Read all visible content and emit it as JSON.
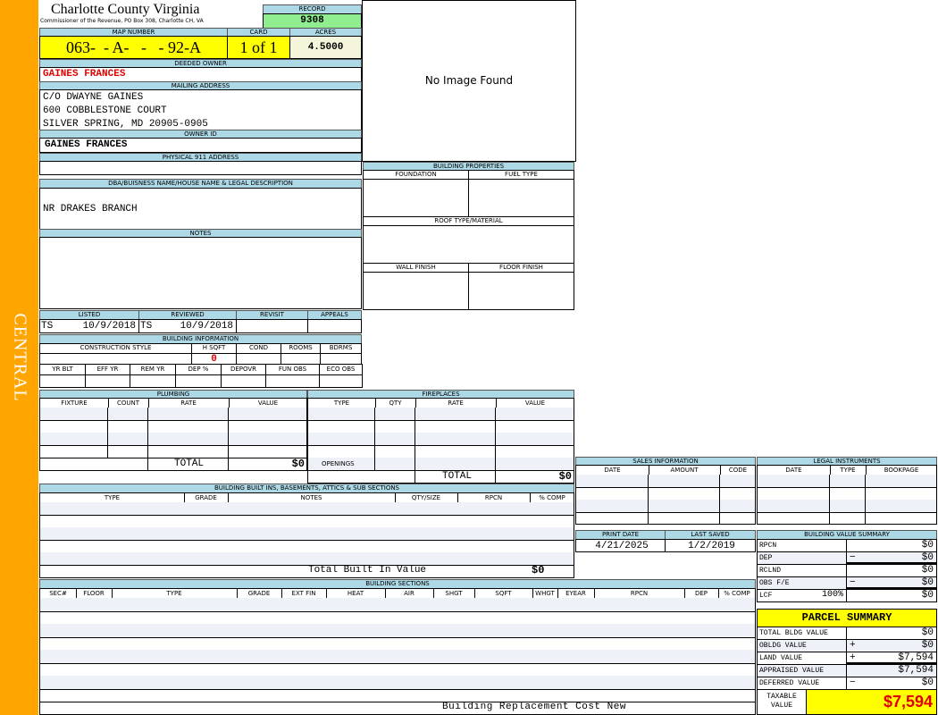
{
  "sidebar": {
    "label": "CENTRAL",
    "color": "#ffa500"
  },
  "header": {
    "title": "Charlotte County Virginia",
    "subtitle": "Commissioner of the Revenue, PO Box 308, Charlotte CH, VA",
    "record_label": "RECORD",
    "record": "9308"
  },
  "parcel": {
    "map_label": "MAP NUMBER",
    "map_number": "063-  - A-   -   - 92-A",
    "card_label": "CARD",
    "card": "1 of 1",
    "acres_label": "ACRES",
    "acres": "4.5000"
  },
  "owner": {
    "deeded_label": "DEEDED OWNER",
    "deeded": "GAINES FRANCES",
    "mailing_label": "MAILING ADDRESS",
    "mailing": [
      "C/O DWAYNE GAINES",
      "600 COBBLESTONE COURT",
      "SILVER SPRING, MD 20905-0905"
    ],
    "owner_id_label": "OWNER ID",
    "owner_id": "GAINES FRANCES",
    "physical_label": "PHYSICAL 911 ADDRESS",
    "physical": ""
  },
  "legal": {
    "label": "DBA/BUISNESS NAME/HOUSE NAME & LEGAL DESCRIPTION",
    "value": "NR DRAKES BRANCH",
    "notes_label": "NOTES"
  },
  "image": {
    "text": "No Image Found"
  },
  "building_properties": {
    "title": "BUILDING PROPERTIES",
    "foundation": "FOUNDATION",
    "fuel": "FUEL TYPE",
    "roof": "ROOF TYPE/MATERIAL",
    "wall": "WALL FINISH",
    "floor": "FLOOR FINISH"
  },
  "listing": {
    "listed_label": "LISTED",
    "reviewed_label": "REVIEWED",
    "revisit_label": "REVISIT",
    "appeals_label": "APPEALS",
    "listed_by": "TS",
    "listed_date": "10/9/2018",
    "reviewed_by": "TS",
    "reviewed_date": "10/9/2018"
  },
  "building_info": {
    "title": "BUILDING INFORMATION",
    "cols1": [
      "CONSTRUCTION STYLE",
      "H SQFT",
      "COND",
      "ROOMS",
      "BDRMS"
    ],
    "hsqft": "0",
    "cols2": [
      "YR BLT",
      "EFF YR",
      "REM YR",
      "DEP %",
      "DEPOVR",
      "FUN OBS",
      "ECO OBS"
    ]
  },
  "plumbing": {
    "title": "PLUMBING",
    "cols": [
      "FIXTURE",
      "COUNT",
      "RATE",
      "VALUE"
    ],
    "total_label": "TOTAL",
    "total": "$0"
  },
  "fireplaces": {
    "title": "FIREPLACES",
    "cols": [
      "TYPE",
      "QTY",
      "RATE",
      "VALUE"
    ],
    "openings_label": "OPENINGS",
    "total_label": "TOTAL",
    "total": "$0"
  },
  "sales": {
    "title": "SALES INFORMATION",
    "cols": [
      "DATE",
      "AMOUNT",
      "CODE"
    ]
  },
  "instruments": {
    "title": "LEGAL INSTRUMENTS",
    "cols": [
      "DATE",
      "TYPE",
      "BOOKPAGE"
    ]
  },
  "dates": {
    "print_label": "PRINT DATE",
    "print": "4/21/2025",
    "saved_label": "LAST SAVED",
    "saved": "1/2/2019"
  },
  "bvs": {
    "title": "BUILDING VALUE SUMMARY",
    "rows": [
      {
        "label": "RPCN",
        "sign": "",
        "value": "$0"
      },
      {
        "label": "DEP",
        "sign": "−",
        "value": "$0"
      },
      {
        "label": "RCLND",
        "sign": "",
        "value": "$0"
      },
      {
        "label": "OBS F/E",
        "sign": "−",
        "value": "$0"
      },
      {
        "label": "LCF",
        "pct": "100%",
        "sign": "",
        "value": "$0"
      }
    ]
  },
  "parcel_summary": {
    "title": "PARCEL SUMMARY",
    "rows": [
      {
        "label": "TOTAL BLDG VALUE",
        "sign": "",
        "value": "$0"
      },
      {
        "label": "OBLDG VALUE",
        "sign": "+",
        "value": "$0"
      },
      {
        "label": "LAND VALUE",
        "sign": "+",
        "value": "$7,594"
      },
      {
        "label": "APPRAISED VALUE",
        "sign": "",
        "value": "$7,594"
      },
      {
        "label": "DEFERRED VALUE",
        "sign": "−",
        "value": "$0"
      }
    ],
    "taxable_label": "TAXABLE VALUE",
    "taxable": "$7,594"
  },
  "built_ins": {
    "title": "BUILDING BUILT INS, BASEMENTS, ATTICS & SUB SECTIONS",
    "cols": [
      "TYPE",
      "GRADE",
      "NOTES",
      "QTY/SIZE",
      "RPCN",
      "% COMP"
    ],
    "total_label": "Total Built In Value",
    "total": "$0"
  },
  "sections": {
    "title": "BUILDING SECTIONS",
    "cols": [
      "SEC#",
      "FLOOR",
      "TYPE",
      "GRADE",
      "EXT FIN",
      "HEAT",
      "AIR",
      "SHGT",
      "SQFT",
      "WHGT",
      "EYEAR",
      "RPCN",
      "DEP",
      "% COMP"
    ],
    "footer": "Building Replacement Cost New"
  },
  "colors": {
    "header_blue": "#add8e6",
    "yellow": "#ffff00",
    "record_green": "#90ee90",
    "red": "#e00000"
  }
}
